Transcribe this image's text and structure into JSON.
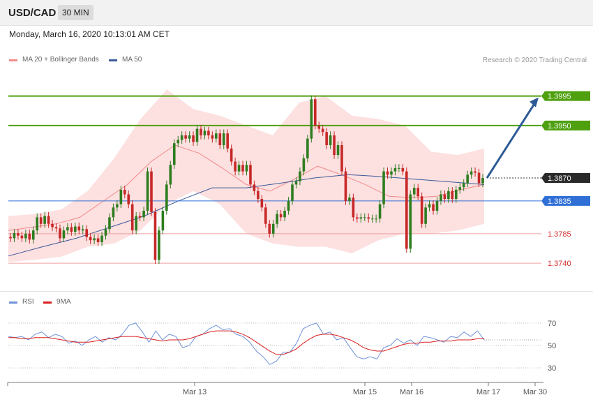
{
  "header": {
    "pair": "USD/CAD",
    "timeframe": "30 MIN"
  },
  "datetime": "Monday, March 16, 2020 10:13:01 AM CET",
  "legend": {
    "ma20_bb": "MA 20 + Bollinger Bands",
    "ma50": "MA 50",
    "rsi": "RSI",
    "rsi_ma": "9MA"
  },
  "credit": "Research © 2020 Trading Central",
  "colors": {
    "up": "#2e7d1f",
    "down": "#c62828",
    "bb_fill": "#fde0e0",
    "ma20": "#f28a8a",
    "ma50": "#3b5a9a",
    "resistance": "#4fa00f",
    "support_blue": "#2f6fd6",
    "support_red": "#f0a0a0",
    "arrow": "#2c5a96",
    "rsi": "#6f92d8",
    "rsi_ma": "#d81e1e"
  },
  "chart_data": [
    {
      "type": "candlestick",
      "title": "USD/CAD 30 MIN",
      "ylim": [
        1.3705,
        1.4035
      ],
      "x_ticks": [
        "Mar 13",
        "Mar 15",
        "Mar 16",
        "Mar 17",
        "Mar 30"
      ],
      "levels": [
        {
          "value": 1.3995,
          "label": "1.3995",
          "kind": "resistance"
        },
        {
          "value": 1.395,
          "label": "1.3950",
          "kind": "resistance"
        },
        {
          "value": 1.387,
          "label": "1.3870",
          "kind": "current"
        },
        {
          "value": 1.3835,
          "label": "1.3835",
          "kind": "pivot"
        },
        {
          "value": 1.3785,
          "label": "1.3785",
          "kind": "support"
        },
        {
          "value": 1.374,
          "label": "1.3740",
          "kind": "support"
        }
      ],
      "arrow_target": 1.3995,
      "candles": [
        [
          1.378,
          1.3778
        ],
        [
          1.3778,
          1.3786
        ],
        [
          1.3786,
          1.3782
        ],
        [
          1.3782,
          1.3778
        ],
        [
          1.3778,
          1.3785
        ],
        [
          1.3785,
          1.3776
        ],
        [
          1.3776,
          1.379
        ],
        [
          1.379,
          1.381
        ],
        [
          1.381,
          1.38
        ],
        [
          1.38,
          1.3812
        ],
        [
          1.3812,
          1.38
        ],
        [
          1.38,
          1.3795
        ],
        [
          1.3795,
          1.3793
        ],
        [
          1.3793,
          1.3778
        ],
        [
          1.3778,
          1.379
        ],
        [
          1.379,
          1.3795
        ],
        [
          1.3795,
          1.3788
        ],
        [
          1.3788,
          1.3796
        ],
        [
          1.3796,
          1.379
        ],
        [
          1.379,
          1.3792
        ],
        [
          1.3792,
          1.378
        ],
        [
          1.378,
          1.3775
        ],
        [
          1.3775,
          1.3778
        ],
        [
          1.3778,
          1.3772
        ],
        [
          1.3772,
          1.3782
        ],
        [
          1.3782,
          1.3792
        ],
        [
          1.3792,
          1.381
        ],
        [
          1.381,
          1.3825
        ],
        [
          1.3825,
          1.383
        ],
        [
          1.383,
          1.3852
        ],
        [
          1.3852,
          1.3845
        ],
        [
          1.3845,
          1.383
        ],
        [
          1.383,
          1.379
        ],
        [
          1.379,
          1.3812
        ],
        [
          1.3812,
          1.381
        ],
        [
          1.381,
          1.382
        ],
        [
          1.382,
          1.388
        ],
        [
          1.388,
          1.3818
        ],
        [
          1.3818,
          1.3745
        ],
        [
          1.3745,
          1.379
        ],
        [
          1.379,
          1.382
        ],
        [
          1.382,
          1.386
        ],
        [
          1.386,
          1.389
        ],
        [
          1.389,
          1.3923
        ],
        [
          1.3923,
          1.3928
        ],
        [
          1.3928,
          1.3935
        ],
        [
          1.3935,
          1.393
        ],
        [
          1.393,
          1.3935
        ],
        [
          1.3935,
          1.3925
        ],
        [
          1.3925,
          1.3945
        ],
        [
          1.3945,
          1.3935
        ],
        [
          1.3935,
          1.3942
        ],
        [
          1.3942,
          1.3935
        ],
        [
          1.3935,
          1.393
        ],
        [
          1.393,
          1.3938
        ],
        [
          1.3938,
          1.392
        ],
        [
          1.392,
          1.3938
        ],
        [
          1.3938,
          1.3915
        ],
        [
          1.3915,
          1.3895
        ],
        [
          1.3895,
          1.388
        ],
        [
          1.388,
          1.389
        ],
        [
          1.389,
          1.388
        ],
        [
          1.388,
          1.389
        ],
        [
          1.389,
          1.386
        ],
        [
          1.386,
          1.385
        ],
        [
          1.385,
          1.3838
        ],
        [
          1.3838,
          1.3825
        ],
        [
          1.3825,
          1.38
        ],
        [
          1.38,
          1.3785
        ],
        [
          1.3785,
          1.38
        ],
        [
          1.38,
          1.3815
        ],
        [
          1.3815,
          1.381
        ],
        [
          1.381,
          1.382
        ],
        [
          1.382,
          1.3835
        ],
        [
          1.3835,
          1.386
        ],
        [
          1.386,
          1.3865
        ],
        [
          1.3865,
          1.388
        ],
        [
          1.388,
          1.39
        ],
        [
          1.39,
          1.393
        ],
        [
          1.393,
          1.399
        ],
        [
          1.399,
          1.395
        ],
        [
          1.395,
          1.3945
        ],
        [
          1.3945,
          1.394
        ],
        [
          1.394,
          1.392
        ],
        [
          1.392,
          1.3935
        ],
        [
          1.3935,
          1.3905
        ],
        [
          1.3905,
          1.392
        ],
        [
          1.392,
          1.388
        ],
        [
          1.388,
          1.3835
        ],
        [
          1.3835,
          1.384
        ],
        [
          1.384,
          1.381
        ],
        [
          1.381,
          1.3808
        ],
        [
          1.3808,
          1.381
        ],
        [
          1.381,
          1.381
        ],
        [
          1.381,
          1.3808
        ],
        [
          1.3808,
          1.3808
        ],
        [
          1.3808,
          1.3808
        ],
        [
          1.3808,
          1.383
        ],
        [
          1.383,
          1.388
        ],
        [
          1.388,
          1.3875
        ],
        [
          1.3875,
          1.388
        ],
        [
          1.388,
          1.3885
        ],
        [
          1.3885,
          1.3885
        ],
        [
          1.3885,
          1.388
        ],
        [
          1.388,
          1.3762
        ],
        [
          1.3762,
          1.3845
        ],
        [
          1.3845,
          1.3855
        ],
        [
          1.3855,
          1.3842
        ],
        [
          1.3842,
          1.38
        ],
        [
          1.38,
          1.3825
        ],
        [
          1.3825,
          1.383
        ],
        [
          1.383,
          1.382
        ],
        [
          1.382,
          1.3835
        ],
        [
          1.3835,
          1.3845
        ],
        [
          1.3845,
          1.3838
        ],
        [
          1.3838,
          1.385
        ],
        [
          1.385,
          1.3838
        ],
        [
          1.3838,
          1.3852
        ],
        [
          1.3852,
          1.3856
        ],
        [
          1.3856,
          1.3862
        ],
        [
          1.3862,
          1.3875
        ],
        [
          1.3875,
          1.388
        ],
        [
          1.388,
          1.3878
        ],
        [
          1.3878,
          1.3862
        ],
        [
          1.3862,
          1.387
        ]
      ],
      "ma20": [
        1.379,
        1.3795,
        1.38,
        1.381,
        1.3835,
        1.386,
        1.3895,
        1.392,
        1.3908,
        1.3885,
        1.386,
        1.385,
        1.3868,
        1.3888,
        1.3875,
        1.386,
        1.3842,
        1.384,
        1.3842,
        1.3852,
        1.386
      ],
      "ma50": [
        1.3751,
        1.3765,
        1.3778,
        1.3795,
        1.3812,
        1.3835,
        1.3855,
        1.3855,
        1.3862,
        1.387,
        1.3875,
        1.3872,
        1.3868,
        1.3864,
        1.386
      ],
      "bb_upper": [
        1.3812,
        1.3815,
        1.3822,
        1.385,
        1.39,
        1.396,
        1.4005,
        1.3975,
        1.3965,
        1.395,
        1.3935,
        1.3985,
        1.3995,
        1.3965,
        1.396,
        1.395,
        1.391,
        1.3905,
        1.3915
      ],
      "bb_lower": [
        1.3742,
        1.3745,
        1.375,
        1.3765,
        1.377,
        1.379,
        1.383,
        1.385,
        1.383,
        1.3785,
        1.377,
        1.3765,
        1.3765,
        1.3755,
        1.3775,
        1.3785,
        1.3785,
        1.379,
        1.38
      ]
    },
    {
      "type": "line",
      "title": "RSI",
      "ylim": [
        22,
        78
      ],
      "y_ticks": [
        70,
        50,
        30
      ],
      "series": [
        {
          "name": "RSI",
          "values": [
            58,
            57,
            58,
            55,
            60,
            62,
            57,
            60,
            58,
            52,
            54,
            50,
            55,
            58,
            53,
            57,
            55,
            60,
            68,
            70,
            62,
            53,
            63,
            55,
            60,
            58,
            48,
            50,
            58,
            60,
            65,
            68,
            64,
            65,
            60,
            58,
            53,
            45,
            40,
            33,
            36,
            44,
            44,
            52,
            65,
            68,
            70,
            60,
            62,
            55,
            57,
            48,
            40,
            38,
            40,
            38,
            48,
            50,
            56,
            52,
            55,
            50,
            58,
            57,
            55,
            53,
            58,
            57,
            62,
            58,
            63,
            55
          ]
        },
        {
          "name": "9MA",
          "values": [
            57,
            57,
            56,
            56,
            57,
            57,
            57,
            56,
            55,
            54,
            53,
            53,
            53,
            54,
            55,
            56,
            57,
            58,
            58,
            58,
            57,
            56,
            55,
            54,
            55,
            55,
            55,
            56,
            58,
            60,
            62,
            63,
            63,
            63,
            62,
            60,
            57,
            53,
            49,
            45,
            42,
            42,
            44,
            47,
            52,
            56,
            59,
            60,
            60,
            59,
            57,
            55,
            52,
            48,
            46,
            45,
            45,
            47,
            49,
            51,
            52,
            52,
            53,
            53,
            54,
            54,
            54,
            55,
            55,
            55,
            56,
            56
          ]
        }
      ]
    }
  ]
}
